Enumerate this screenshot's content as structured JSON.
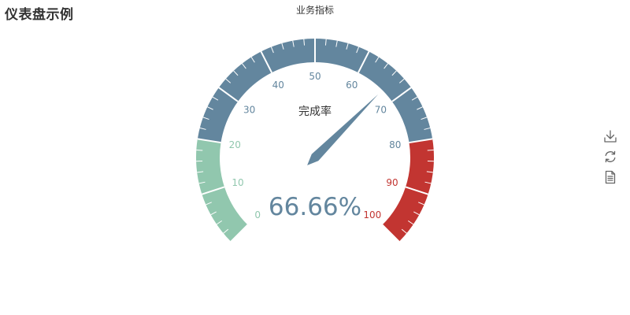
{
  "page": {
    "title": "仪表盘示例"
  },
  "toolbox": {
    "items": [
      {
        "name": "save-as-image",
        "icon": "download-icon"
      },
      {
        "name": "restore",
        "icon": "refresh-icon"
      },
      {
        "name": "data-view",
        "icon": "document-icon"
      }
    ],
    "icon_color": "#666666"
  },
  "chart_data": {
    "type": "gauge",
    "title": "业务指标",
    "series_name": "业务指标",
    "detail_label": "完成率",
    "min": 0,
    "max": 100,
    "value": 66.66,
    "value_text": "66.66%",
    "tick_labels": [
      "0",
      "10",
      "20",
      "30",
      "40",
      "50",
      "60",
      "70",
      "80",
      "90",
      "100"
    ],
    "bands": [
      {
        "to": 0.2,
        "color": "#91c7ae"
      },
      {
        "to": 0.8,
        "color": "#63869e"
      },
      {
        "to": 1.0,
        "color": "#c23531"
      }
    ],
    "start_angle": 225,
    "end_angle": -45
  }
}
